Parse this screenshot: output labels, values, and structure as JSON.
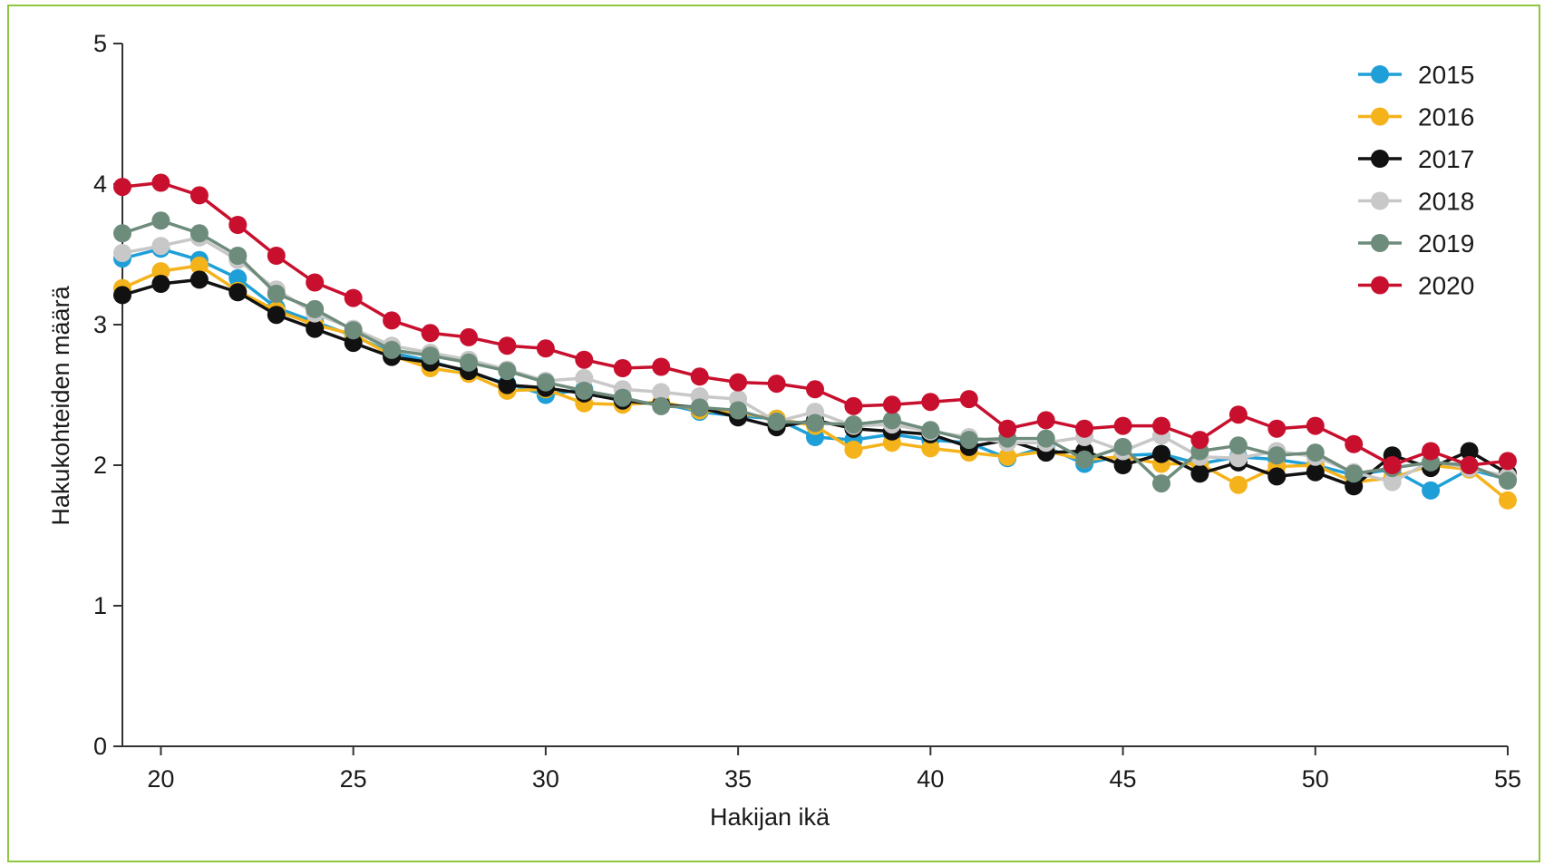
{
  "chart_data": {
    "type": "line",
    "title": "",
    "xlabel": "Hakijan ikä",
    "ylabel": "Hakukohteiden määrä",
    "xlim": [
      19,
      55
    ],
    "ylim": [
      0,
      5
    ],
    "xticks": [
      20,
      25,
      30,
      35,
      40,
      45,
      50,
      55
    ],
    "yticks": [
      0,
      1,
      2,
      3,
      4,
      5
    ],
    "grid": false,
    "legend_position": "top-right",
    "x": [
      19,
      20,
      21,
      22,
      23,
      24,
      25,
      26,
      27,
      28,
      29,
      30,
      31,
      32,
      33,
      34,
      35,
      36,
      37,
      38,
      39,
      40,
      41,
      42,
      43,
      44,
      45,
      46,
      47,
      48,
      49,
      50,
      51,
      52,
      53,
      54,
      55
    ],
    "series": [
      {
        "name": "2015",
        "color": "#1f9fd8",
        "values": [
          3.47,
          3.54,
          3.46,
          3.33,
          3.12,
          3.02,
          2.92,
          2.8,
          2.74,
          2.66,
          2.58,
          2.5,
          2.54,
          2.45,
          2.44,
          2.38,
          2.35,
          2.33,
          2.2,
          2.18,
          2.22,
          2.18,
          2.16,
          2.05,
          2.13,
          2.01,
          2.07,
          2.08,
          2.01,
          2.06,
          2.04,
          2.0,
          1.93,
          1.97,
          1.82,
          1.97,
          1.9
        ]
      },
      {
        "name": "2016",
        "color": "#f5b31b",
        "values": [
          3.26,
          3.38,
          3.42,
          3.24,
          3.1,
          3.0,
          2.93,
          2.78,
          2.69,
          2.65,
          2.53,
          2.54,
          2.44,
          2.43,
          2.45,
          2.39,
          2.37,
          2.33,
          2.28,
          2.11,
          2.16,
          2.12,
          2.09,
          2.06,
          2.1,
          2.04,
          2.06,
          2.01,
          2.01,
          1.86,
          1.99,
          2.0,
          1.88,
          1.91,
          2.0,
          1.97,
          1.75
        ]
      },
      {
        "name": "2017",
        "color": "#111111",
        "values": [
          3.21,
          3.29,
          3.32,
          3.23,
          3.07,
          2.97,
          2.87,
          2.77,
          2.73,
          2.67,
          2.57,
          2.55,
          2.51,
          2.46,
          2.43,
          2.41,
          2.34,
          2.27,
          2.32,
          2.26,
          2.24,
          2.22,
          2.13,
          2.18,
          2.09,
          2.1,
          2.0,
          2.08,
          1.94,
          2.02,
          1.92,
          1.95,
          1.85,
          2.07,
          1.98,
          2.1,
          1.94
        ]
      },
      {
        "name": "2018",
        "color": "#c8c8c8",
        "values": [
          3.51,
          3.56,
          3.62,
          3.46,
          3.25,
          3.08,
          2.97,
          2.85,
          2.8,
          2.75,
          2.68,
          2.6,
          2.62,
          2.54,
          2.52,
          2.49,
          2.47,
          2.31,
          2.38,
          2.28,
          2.29,
          2.24,
          2.2,
          2.16,
          2.16,
          2.2,
          2.1,
          2.21,
          2.06,
          2.05,
          2.1,
          2.06,
          1.95,
          1.88,
          2.03,
          1.98,
          1.92
        ]
      },
      {
        "name": "2019",
        "color": "#6e8c7c",
        "values": [
          3.65,
          3.74,
          3.65,
          3.49,
          3.22,
          3.11,
          2.96,
          2.82,
          2.78,
          2.73,
          2.67,
          2.59,
          2.53,
          2.48,
          2.42,
          2.41,
          2.39,
          2.31,
          2.3,
          2.29,
          2.32,
          2.25,
          2.18,
          2.19,
          2.19,
          2.04,
          2.13,
          1.87,
          2.1,
          2.14,
          2.07,
          2.09,
          1.94,
          1.98,
          2.02,
          2.0,
          1.89
        ]
      },
      {
        "name": "2020",
        "color": "#c8102e",
        "values": [
          3.98,
          4.01,
          3.92,
          3.71,
          3.49,
          3.3,
          3.19,
          3.03,
          2.94,
          2.91,
          2.85,
          2.83,
          2.75,
          2.69,
          2.7,
          2.63,
          2.59,
          2.58,
          2.54,
          2.42,
          2.43,
          2.45,
          2.47,
          2.26,
          2.32,
          2.26,
          2.28,
          2.28,
          2.18,
          2.36,
          2.26,
          2.28,
          2.15,
          2.0,
          2.1,
          2.0,
          2.03
        ]
      }
    ]
  }
}
